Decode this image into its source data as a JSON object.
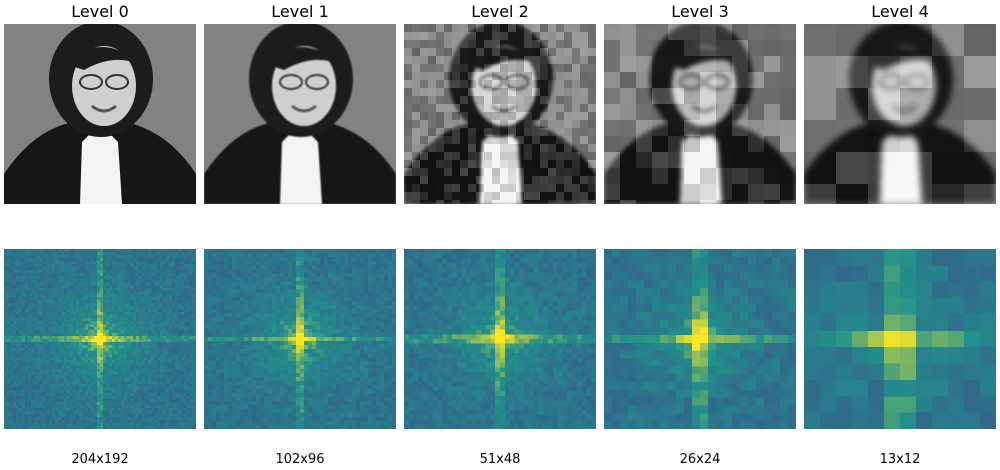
{
  "levels": [
    {
      "title": "Level 0",
      "size": "204x192",
      "block": 1
    },
    {
      "title": "Level 1",
      "size": "102x96",
      "block": 2
    },
    {
      "title": "Level 2",
      "size": "51x48",
      "block": 4
    },
    {
      "title": "Level 3",
      "size": "26x24",
      "block": 8
    },
    {
      "title": "Level 4",
      "size": "13x12",
      "block": 16
    }
  ],
  "colors": {
    "background": "#ffffff",
    "jacket": "#161616",
    "hair": "#1c1c1c",
    "skin": "#cfcfcf",
    "shirt": "#f4f4f4",
    "studio_bg": "#828282",
    "spectrum_low": "#3b528b",
    "spectrum_mid": "#21918c",
    "spectrum_high": "#fde725"
  }
}
